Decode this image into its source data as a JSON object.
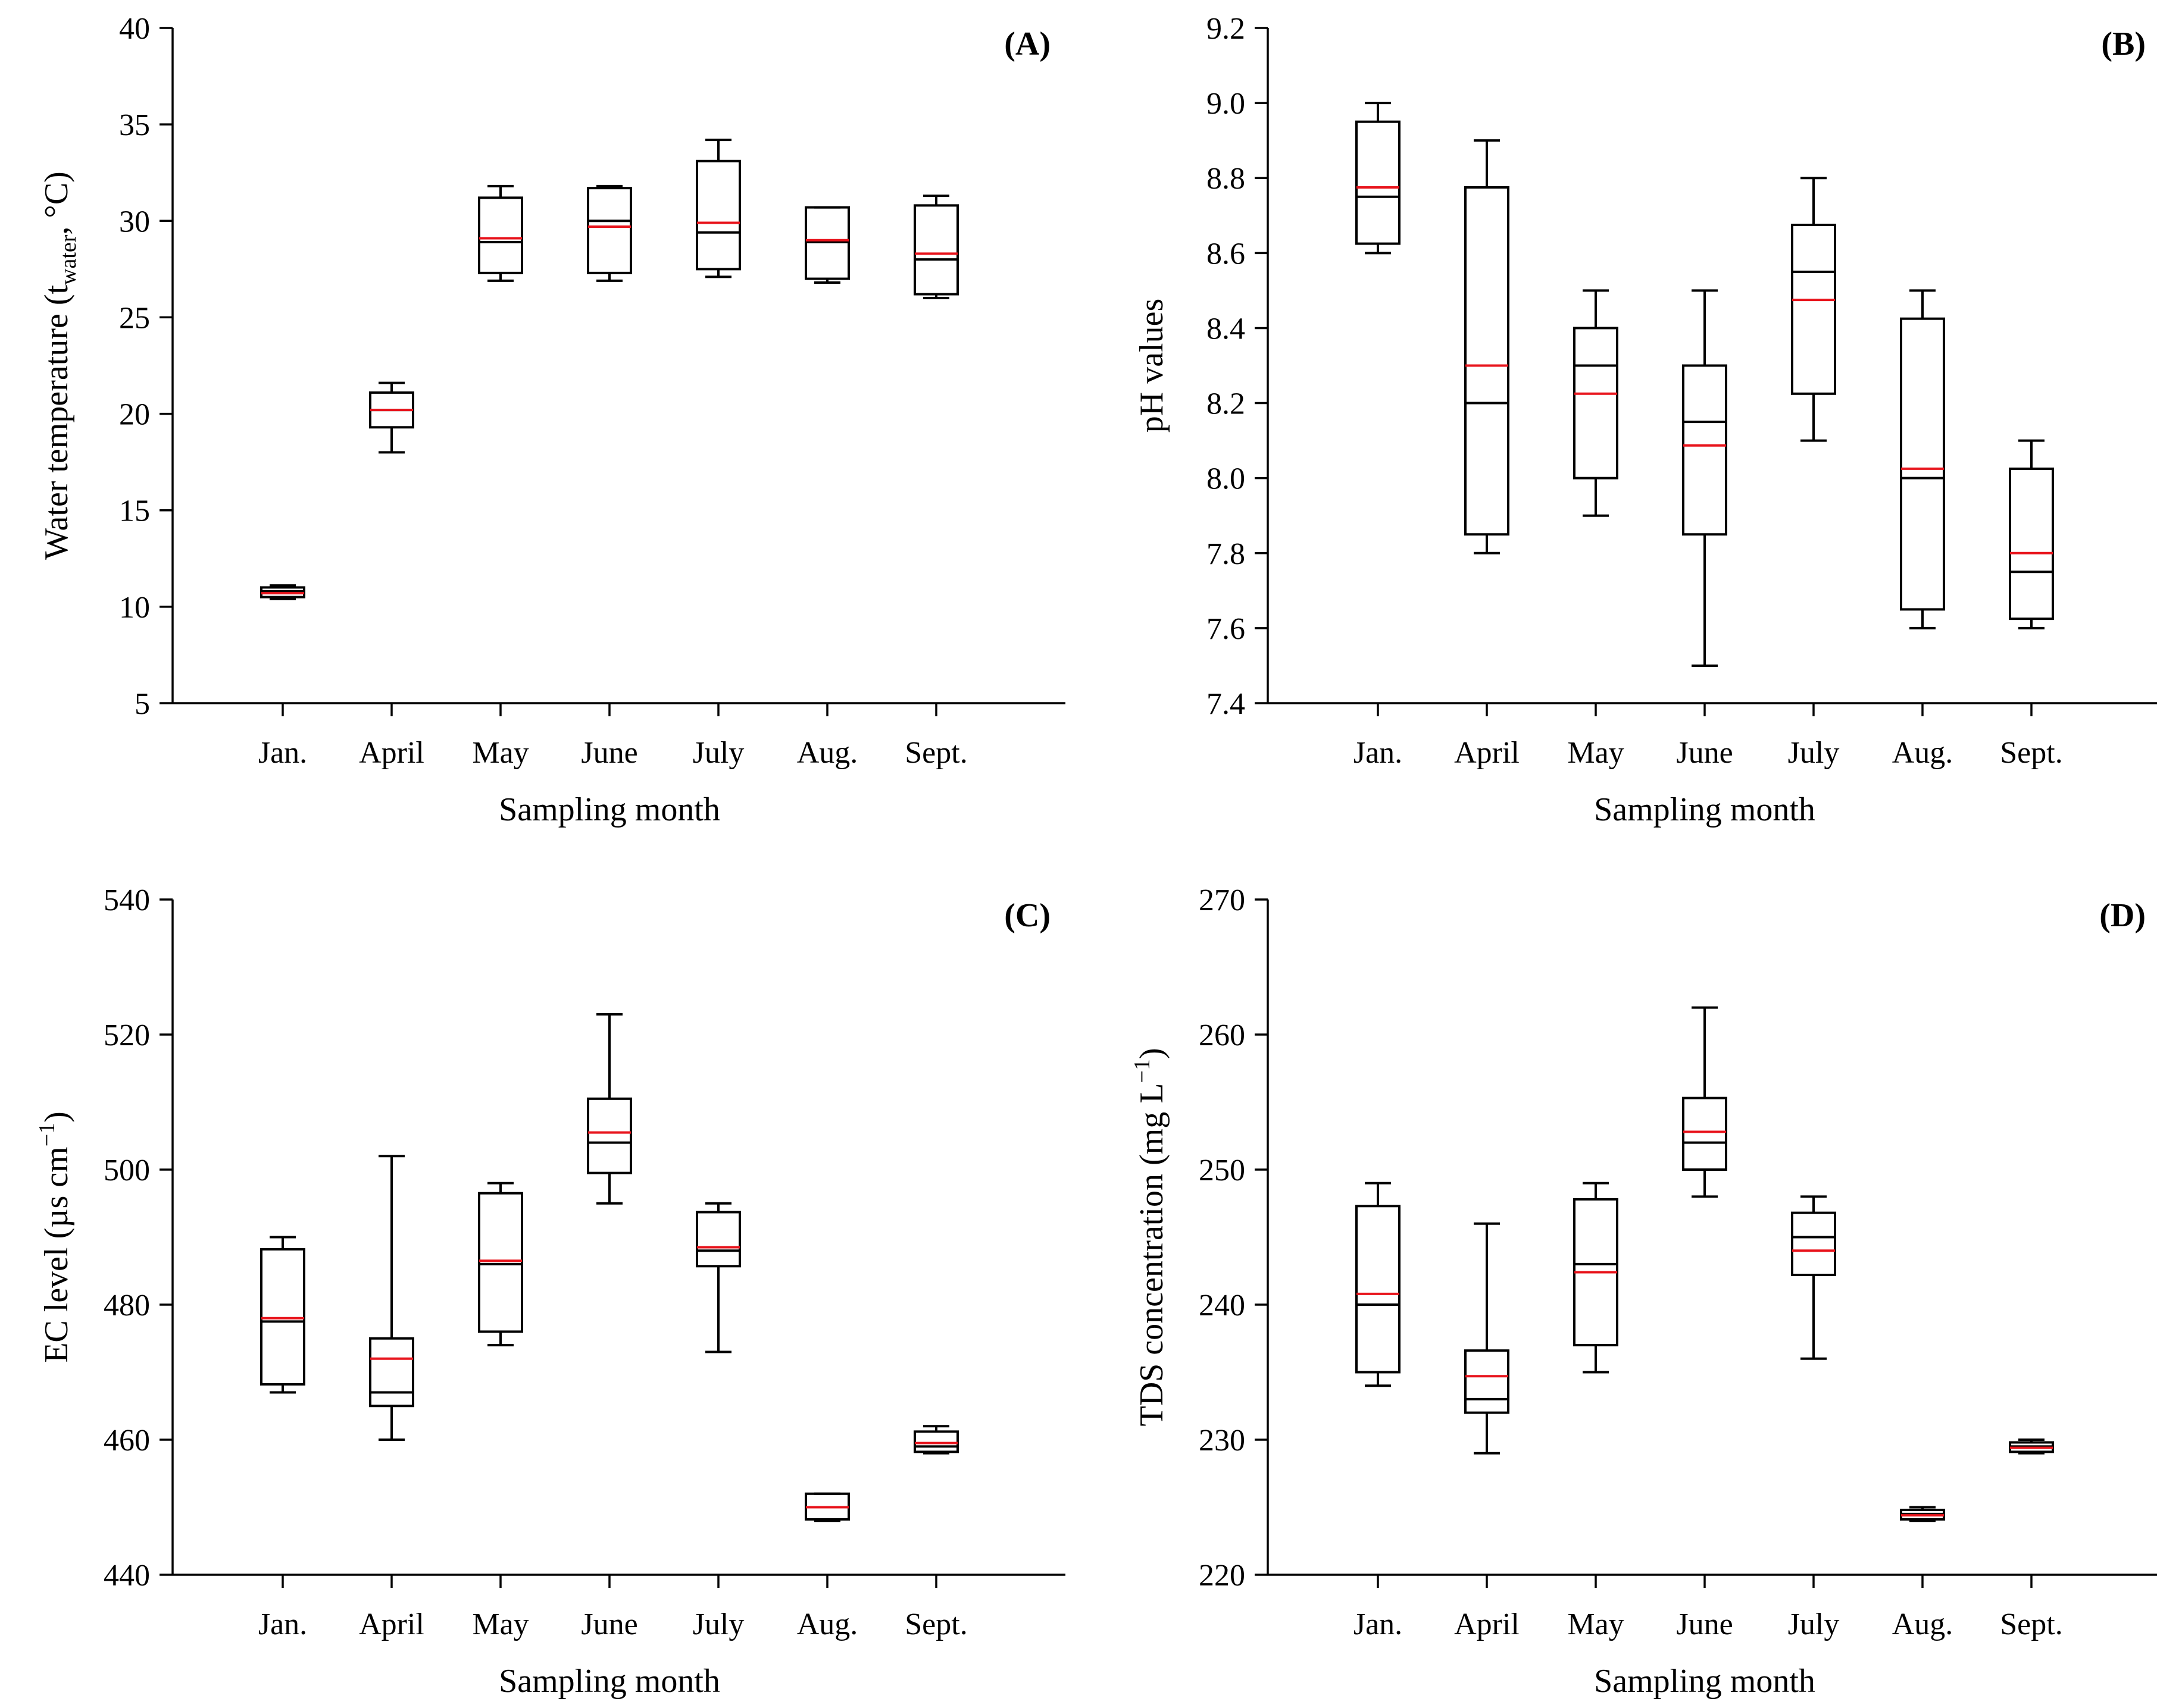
{
  "colors": {
    "mean": "#e8141c",
    "median": "#000000",
    "axes": "#000000"
  },
  "chart_data": [
    {
      "type": "box",
      "panel_label": "(A)",
      "ylabel": "Water temperature (t",
      "ylabel_sub": "water",
      "ylabel_tail": ", °C)",
      "xlabel": "Sampling month",
      "ylim": [
        5,
        40
      ],
      "yticks": [
        5,
        10,
        15,
        20,
        25,
        30,
        35,
        40
      ],
      "ytick_labels": [
        "5",
        "10",
        "15",
        "20",
        "25",
        "30",
        "35",
        "40"
      ],
      "categories": [
        "Jan.",
        "April",
        "May",
        "June",
        "July",
        "Aug.",
        "Sept."
      ],
      "boxes": [
        {
          "min": 10.4,
          "q1": 10.5,
          "median": 10.8,
          "mean": 10.7,
          "q3": 11.0,
          "max": 11.1
        },
        {
          "min": 18.0,
          "q1": 19.3,
          "median": 20.2,
          "mean": 20.2,
          "q3": 21.1,
          "max": 21.6
        },
        {
          "min": 26.9,
          "q1": 27.3,
          "median": 28.9,
          "mean": 29.1,
          "q3": 31.2,
          "max": 31.8
        },
        {
          "min": 26.9,
          "q1": 27.3,
          "median": 30.0,
          "mean": 29.7,
          "q3": 31.7,
          "max": 31.8
        },
        {
          "min": 27.1,
          "q1": 27.5,
          "median": 29.4,
          "mean": 29.9,
          "q3": 33.1,
          "max": 34.2
        },
        {
          "min": 26.8,
          "q1": 27.0,
          "median": 28.9,
          "mean": 29.0,
          "q3": 30.7,
          "max": 30.7
        },
        {
          "min": 26.0,
          "q1": 26.2,
          "median": 28.0,
          "mean": 28.3,
          "q3": 30.8,
          "max": 31.3
        }
      ]
    },
    {
      "type": "box",
      "panel_label": "(B)",
      "ylabel": "pH values",
      "ylabel_sub": "",
      "ylabel_tail": "",
      "xlabel": "Sampling month",
      "ylim": [
        7.4,
        9.2
      ],
      "yticks": [
        7.4,
        7.6,
        7.8,
        8.0,
        8.2,
        8.4,
        8.6,
        8.8,
        9.0,
        9.2
      ],
      "ytick_labels": [
        "7.4",
        "7.6",
        "7.8",
        "8.0",
        "8.2",
        "8.4",
        "8.6",
        "8.8",
        "9.0",
        "9.2"
      ],
      "categories": [
        "Jan.",
        "April",
        "May",
        "June",
        "July",
        "Aug.",
        "Sept."
      ],
      "boxes": [
        {
          "min": 8.6,
          "q1": 8.625,
          "median": 8.75,
          "mean": 8.775,
          "q3": 8.95,
          "max": 9.0
        },
        {
          "min": 7.8,
          "q1": 7.85,
          "median": 8.2,
          "mean": 8.3,
          "q3": 8.775,
          "max": 8.9
        },
        {
          "min": 7.9,
          "q1": 8.0,
          "median": 8.3,
          "mean": 8.225,
          "q3": 8.4,
          "max": 8.5
        },
        {
          "min": 7.5,
          "q1": 7.85,
          "median": 8.15,
          "mean": 8.087,
          "q3": 8.3,
          "max": 8.5
        },
        {
          "min": 8.1,
          "q1": 8.225,
          "median": 8.55,
          "mean": 8.475,
          "q3": 8.675,
          "max": 8.8
        },
        {
          "min": 7.6,
          "q1": 7.65,
          "median": 8.0,
          "mean": 8.025,
          "q3": 8.425,
          "max": 8.5
        },
        {
          "min": 7.6,
          "q1": 7.625,
          "median": 7.75,
          "mean": 7.8,
          "q3": 8.025,
          "max": 8.1
        }
      ]
    },
    {
      "type": "box",
      "panel_label": "(C)",
      "ylabel": "EC level (µs cm",
      "ylabel_sup": "−1",
      "ylabel_tail": ")",
      "xlabel": "Sampling month",
      "ylim": [
        440,
        540
      ],
      "yticks": [
        440,
        460,
        480,
        500,
        520,
        540
      ],
      "ytick_labels": [
        "440",
        "460",
        "480",
        "500",
        "520",
        "540"
      ],
      "categories": [
        "Jan.",
        "April",
        "May",
        "June",
        "July",
        "Aug.",
        "Sept."
      ],
      "boxes": [
        {
          "min": 467,
          "q1": 468.2,
          "median": 477.5,
          "mean": 478.0,
          "q3": 488.2,
          "max": 490
        },
        {
          "min": 460,
          "q1": 465,
          "median": 467,
          "mean": 472,
          "q3": 475,
          "max": 502
        },
        {
          "min": 474,
          "q1": 476,
          "median": 486,
          "mean": 486.5,
          "q3": 496.5,
          "max": 498
        },
        {
          "min": 495,
          "q1": 499.5,
          "median": 504,
          "mean": 505.5,
          "q3": 510.5,
          "max": 523
        },
        {
          "min": 473,
          "q1": 485.7,
          "median": 488,
          "mean": 488.5,
          "q3": 493.7,
          "max": 495
        },
        {
          "min": 448,
          "q1": 448.2,
          "median": 450,
          "mean": 450,
          "q3": 452,
          "max": 452
        },
        {
          "min": 458,
          "q1": 458.2,
          "median": 459,
          "mean": 459.5,
          "q3": 461.2,
          "max": 462
        }
      ]
    },
    {
      "type": "box",
      "panel_label": "(D)",
      "ylabel": "TDS concentration (mg L",
      "ylabel_sup": "−1",
      "ylabel_tail": ")",
      "xlabel": "Sampling month",
      "ylim": [
        220,
        270
      ],
      "yticks": [
        220,
        230,
        240,
        250,
        260,
        270
      ],
      "ytick_labels": [
        "220",
        "230",
        "240",
        "250",
        "260",
        "270"
      ],
      "categories": [
        "Jan.",
        "April",
        "May",
        "June",
        "July",
        "Aug.",
        "Sept."
      ],
      "boxes": [
        {
          "min": 234,
          "q1": 235,
          "median": 240,
          "mean": 240.8,
          "q3": 247.3,
          "max": 249
        },
        {
          "min": 229,
          "q1": 232,
          "median": 233,
          "mean": 234.7,
          "q3": 236.6,
          "max": 246
        },
        {
          "min": 235,
          "q1": 237,
          "median": 243,
          "mean": 242.4,
          "q3": 247.8,
          "max": 249
        },
        {
          "min": 248,
          "q1": 250,
          "median": 252,
          "mean": 252.8,
          "q3": 255.3,
          "max": 262
        },
        {
          "min": 236,
          "q1": 242.2,
          "median": 245,
          "mean": 244,
          "q3": 246.8,
          "max": 248
        },
        {
          "min": 224,
          "q1": 224.1,
          "median": 224.5,
          "mean": 224.4,
          "q3": 224.8,
          "max": 225
        },
        {
          "min": 229,
          "q1": 229.1,
          "median": 229.5,
          "mean": 229.4,
          "q3": 229.8,
          "max": 230
        }
      ]
    }
  ]
}
